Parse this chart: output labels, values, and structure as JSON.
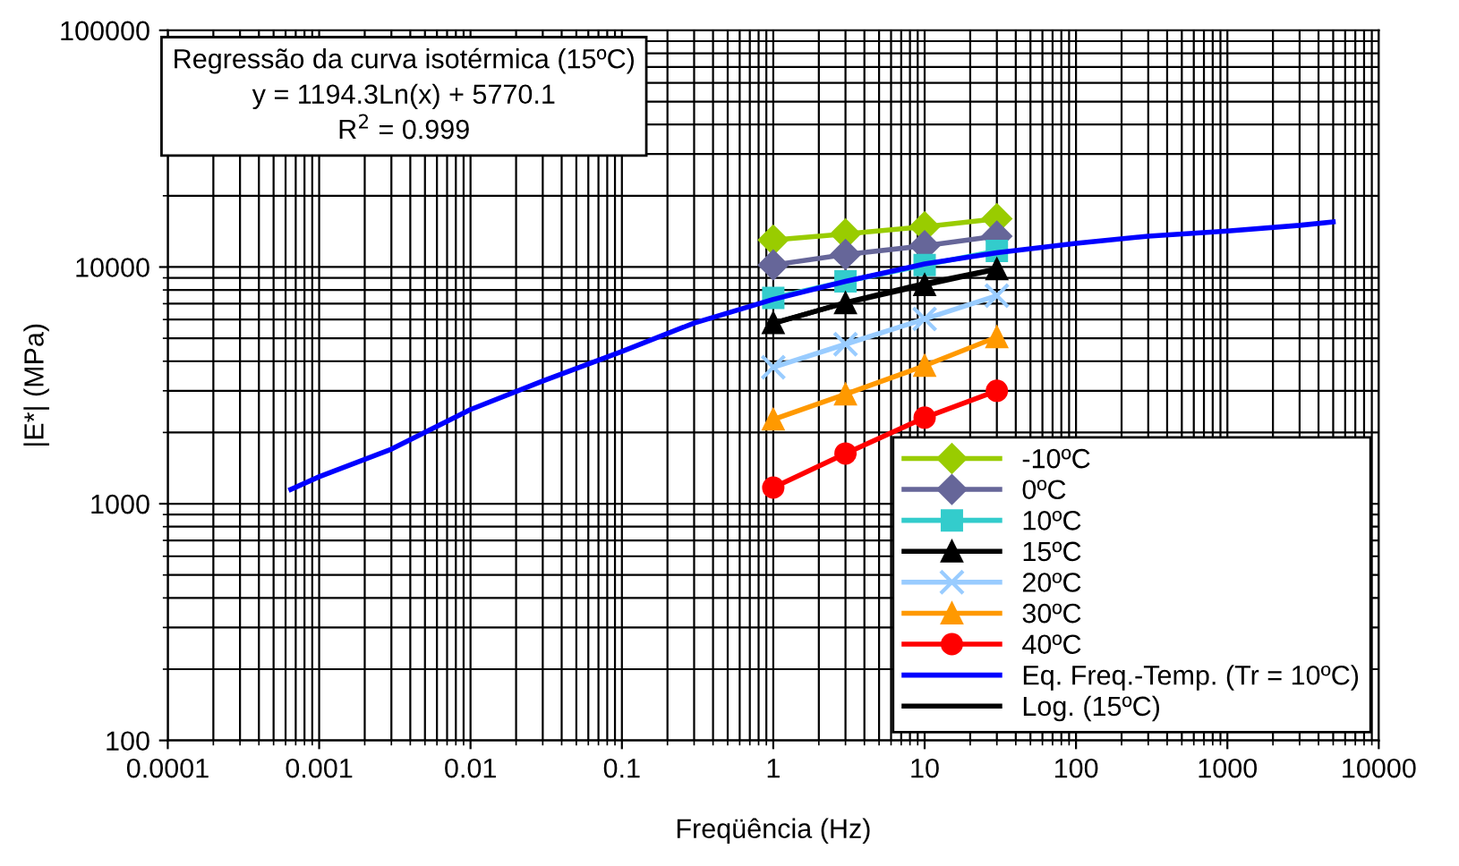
{
  "chart_data": {
    "type": "line",
    "xlabel": "Freqüência (Hz)",
    "ylabel": "|E*| (MPa)",
    "log": "xy",
    "grid": true,
    "legend": "bottom right",
    "xlim": [
      0.0001,
      10000
    ],
    "xticks": [
      0.0001,
      0.001,
      0.01,
      0.1,
      1,
      10,
      100,
      1000,
      10000
    ],
    "ylim": [
      100,
      100000
    ],
    "yticks": [
      100,
      1000,
      10000,
      100000
    ],
    "annotations": [
      "Regressão da curva isotérmica (15ºC)\ny = 1194.3Ln(x) + 5770.1\nR$^{2}$ = 0.999"
    ],
    "series": [
      {
        "name": "-10ºC",
        "color": "#99cc00",
        "marker": "diamond",
        "x": [
          1,
          3,
          10,
          30
        ],
        "values": [
          13000,
          13800,
          14800,
          16000
        ]
      },
      {
        "name": "0ºC",
        "color": "#666699",
        "marker": "diamond",
        "x": [
          1,
          3,
          10,
          30
        ],
        "values": [
          10200,
          11300,
          12300,
          13500
        ]
      },
      {
        "name": "10ºC",
        "color": "#33cccc",
        "marker": "square",
        "x": [
          1,
          3,
          10,
          30
        ],
        "values": [
          7400,
          8700,
          10200,
          11700
        ]
      },
      {
        "name": "15ºC",
        "color": "#000000",
        "marker": "triangle",
        "x": [
          1,
          3,
          10,
          30
        ],
        "values": [
          5800,
          7050,
          8400,
          9800
        ]
      },
      {
        "name": "20ºC",
        "color": "#99ccff",
        "marker": "cross",
        "x": [
          1,
          3,
          10,
          30
        ],
        "values": [
          3770,
          4720,
          6030,
          7570
        ]
      },
      {
        "name": "30ºC",
        "color": "#ff9900",
        "marker": "triangle",
        "x": [
          1,
          3,
          10,
          30
        ],
        "values": [
          2270,
          2900,
          3830,
          5060
        ]
      },
      {
        "name": "40ºC",
        "color": "#ff0000",
        "marker": "circle",
        "x": [
          1,
          3,
          10,
          30
        ],
        "values": [
          1170,
          1630,
          2310,
          3000
        ]
      },
      {
        "name": "Eq. Freq.-Temp. (Tr = 10ºC)",
        "color": "#0000ff",
        "marker": "none",
        "x": [
          0.00065,
          0.001,
          0.003,
          0.01,
          0.03,
          0.1,
          0.3,
          1,
          3,
          10,
          30,
          100,
          300,
          1000,
          3000,
          5000
        ],
        "values": [
          1150,
          1300,
          1700,
          2500,
          3300,
          4400,
          5800,
          7300,
          8700,
          10300,
          11500,
          12600,
          13500,
          14200,
          15000,
          15500
        ]
      },
      {
        "name": "Log. (15ºC)",
        "color": "#000000",
        "marker": "none",
        "x": [
          1,
          3,
          10,
          30
        ],
        "values": [
          5770,
          7082,
          8520,
          9832
        ]
      }
    ]
  }
}
